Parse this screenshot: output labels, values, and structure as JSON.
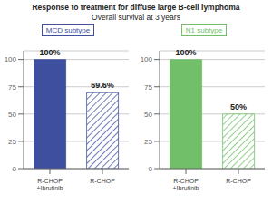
{
  "title": "Response to treatment for diffuse large B-cell lymphoma",
  "subtitle": "Overall survival at 3 years",
  "chart_data": [
    {
      "type": "bar",
      "title": "MCD subtype",
      "categories": [
        "R-CHOP\n+Ibrutinib",
        "R-CHOP"
      ],
      "values": [
        100,
        69.6
      ],
      "value_labels": [
        "100%",
        "69.6%"
      ],
      "data_labels": true,
      "color": "#3d4f9e",
      "ylim": [
        0,
        108
      ],
      "yticks": [
        0,
        25,
        50,
        75,
        100
      ],
      "grid": true
    },
    {
      "type": "bar",
      "title": "N1 subtype",
      "categories": [
        "R-CHOP\n+Ibrutinib",
        "R-CHOP"
      ],
      "values": [
        100,
        50
      ],
      "value_labels": [
        "100%",
        "50%"
      ],
      "data_labels": true,
      "color": "#72bf6a",
      "ylim": [
        0,
        108
      ],
      "yticks": [
        0,
        25,
        50,
        75,
        100
      ],
      "grid": true
    }
  ]
}
